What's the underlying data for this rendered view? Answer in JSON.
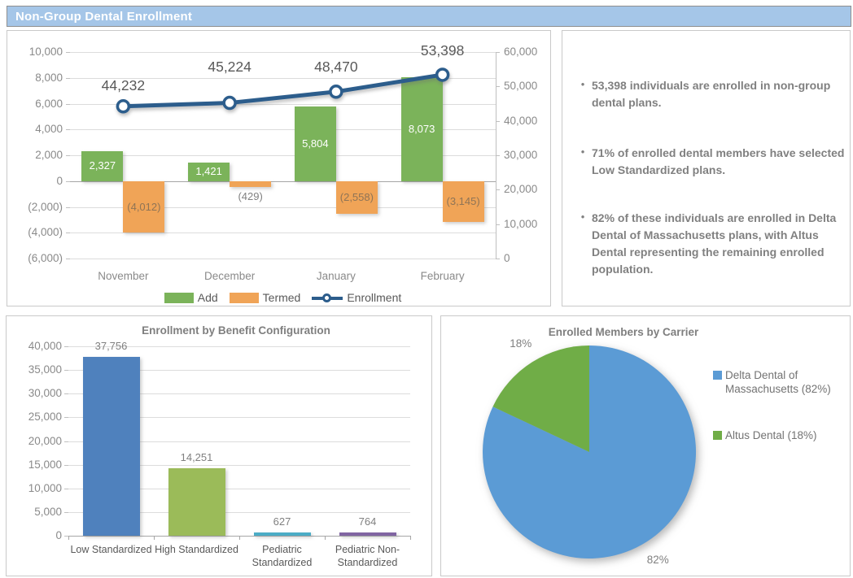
{
  "header": {
    "title": "Non-Group Dental Enrollment"
  },
  "colors": {
    "header_bg": "#A5C6E8",
    "add_green": "#7BB35A",
    "termed_orange": "#F0A457",
    "enrollment_line": "#2C5D8C",
    "benefit_bars": [
      "#4F81BD",
      "#9BBB59",
      "#4BACC6",
      "#8064A2"
    ],
    "pie_blue": "#5B9BD5",
    "pie_green": "#70AD47",
    "grid": "#DCDCDC",
    "axis": "#A6A6A6"
  },
  "insights": {
    "bullets": [
      "53,398 individuals are enrolled in non-group dental plans.",
      "71% of enrolled dental members have selected Low Standardized plans.",
      "82% of these individuals are enrolled in Delta Dental of Massachusetts plans, with Altus Dental representing the remaining enrolled population."
    ]
  },
  "chart_data": [
    {
      "type": "combo",
      "title": "",
      "categories": [
        "November",
        "December",
        "January",
        "February"
      ],
      "series": [
        {
          "name": "Add",
          "type": "bar",
          "axis": "left",
          "values": [
            2327,
            1421,
            5804,
            8073
          ],
          "labels": [
            "2,327",
            "1,421",
            "5,804",
            "8,073"
          ]
        },
        {
          "name": "Termed",
          "type": "bar",
          "axis": "left",
          "values": [
            -4012,
            -429,
            -2558,
            -3145
          ],
          "labels": [
            "(4,012)",
            "(429)",
            "(2,558)",
            "(3,145)"
          ]
        },
        {
          "name": "Enrollment",
          "type": "line",
          "axis": "right",
          "values": [
            44232,
            45224,
            48470,
            53398
          ],
          "labels": [
            "44,232",
            "45,224",
            "48,470",
            "53,398"
          ]
        }
      ],
      "left_axis": {
        "min": -6000,
        "max": 10000,
        "ticks": [
          "10,000",
          "8,000",
          "6,000",
          "4,000",
          "2,000",
          "0",
          "(2,000)",
          "(4,000)",
          "(6,000)"
        ]
      },
      "right_axis": {
        "min": 0,
        "max": 60000,
        "ticks": [
          "60,000",
          "50,000",
          "40,000",
          "30,000",
          "20,000",
          "10,000",
          "0"
        ]
      },
      "legend_position": "bottom",
      "grid": true
    },
    {
      "type": "bar",
      "title": "Enrollment by Benefit Configuration",
      "categories": [
        "Low Standardized",
        "High Standardized",
        "Pediatric\nStandardized",
        "Pediatric Non-\nStandardized"
      ],
      "values": [
        37756,
        14251,
        627,
        764
      ],
      "labels": [
        "37,756",
        "14,251",
        "627",
        "764"
      ],
      "ylim": [
        0,
        40000
      ],
      "yticks": [
        "40,000",
        "35,000",
        "30,000",
        "25,000",
        "20,000",
        "15,000",
        "10,000",
        "5,000",
        "0"
      ],
      "grid": true,
      "legend_position": "none"
    },
    {
      "type": "pie",
      "title": "Enrolled Members by Carrier",
      "slices": [
        {
          "name": "Delta Dental of Massachusetts (82%)",
          "pct": 82,
          "label": "82%"
        },
        {
          "name": "Altus Dental (18%)",
          "pct": 18,
          "label": "18%"
        }
      ],
      "legend_position": "right"
    }
  ]
}
